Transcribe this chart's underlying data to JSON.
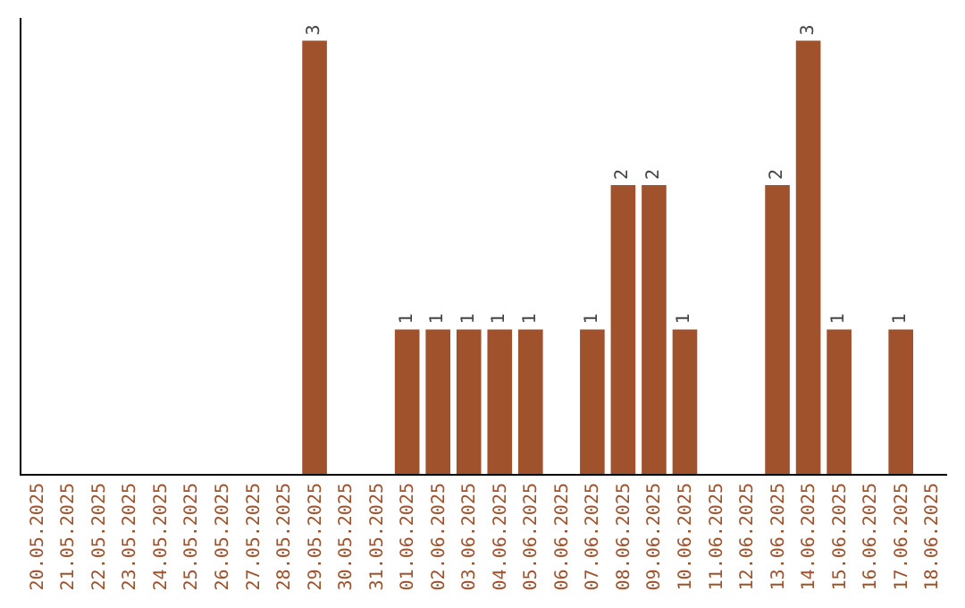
{
  "chart_data": {
    "type": "bar",
    "categories": [
      "20.05.2025",
      "21.05.2025",
      "22.05.2025",
      "23.05.2025",
      "24.05.2025",
      "25.05.2025",
      "26.05.2025",
      "27.05.2025",
      "28.05.2025",
      "29.05.2025",
      "30.05.2025",
      "31.05.2025",
      "01.06.2025",
      "02.06.2025",
      "03.06.2025",
      "04.06.2025",
      "05.06.2025",
      "06.06.2025",
      "07.06.2025",
      "08.06.2025",
      "09.06.2025",
      "10.06.2025",
      "11.06.2025",
      "12.06.2025",
      "13.06.2025",
      "14.06.2025",
      "15.06.2025",
      "16.06.2025",
      "17.06.2025",
      "18.06.2025"
    ],
    "values": [
      0,
      0,
      0,
      0,
      0,
      0,
      0,
      0,
      0,
      3,
      0,
      0,
      1,
      1,
      1,
      1,
      1,
      0,
      1,
      2,
      2,
      1,
      0,
      0,
      2,
      3,
      1,
      0,
      1,
      0
    ],
    "value_labels": [
      null,
      null,
      null,
      null,
      null,
      null,
      null,
      null,
      null,
      "3",
      null,
      null,
      "1",
      "1",
      "1",
      "1",
      "1",
      null,
      "1",
      "2",
      "2",
      "1",
      null,
      null,
      "2",
      "3",
      "1",
      null,
      "1",
      null
    ],
    "color": "#a0522d",
    "tick_labels": "x",
    "grid": false
  }
}
